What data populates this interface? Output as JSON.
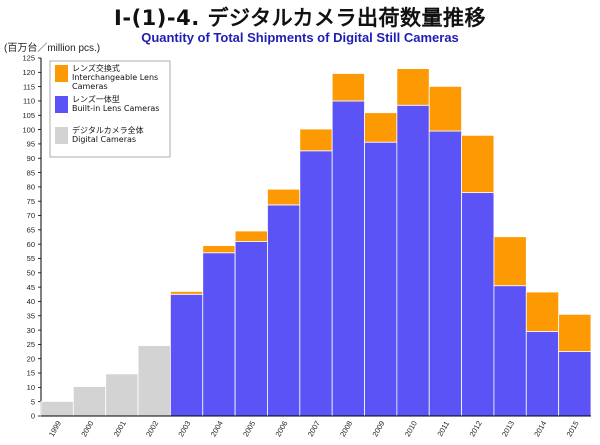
{
  "header": {
    "title": "Ⅰ-(1)-4. デジタルカメラ出荷数量推移",
    "subtitle": "Quantity of Total Shipments of Digital Still Cameras",
    "unit": "(百万台／million pcs.)"
  },
  "chart_data": {
    "type": "bar",
    "stacked": true,
    "title": "Ⅰ-(1)-4. デジタルカメラ出荷数量推移",
    "subtitle": "Quantity of Total Shipments of Digital Still Cameras",
    "ylabel": "(百万台／million pcs.)",
    "ylim": [
      0,
      125
    ],
    "ytick_step": 5,
    "grid": false,
    "legend_position": "top-left",
    "categories": [
      "1999",
      "2000",
      "2001",
      "2002",
      "2003",
      "2004",
      "2005",
      "2006",
      "2007",
      "2008",
      "2009",
      "2010",
      "2011",
      "2012",
      "2013",
      "2014",
      "2015"
    ],
    "series": [
      {
        "name_ja": "デジタルカメラ全体",
        "name_en": "Digital Cameras",
        "color": "#d3d3d3",
        "values": [
          5.1,
          10.3,
          14.7,
          24.6,
          null,
          null,
          null,
          null,
          null,
          null,
          null,
          null,
          null,
          null,
          null,
          null,
          null
        ]
      },
      {
        "name_ja": "レンズ一体型",
        "name_en": "Built-in Lens Cameras",
        "color": "#5b53f5",
        "values": [
          null,
          null,
          null,
          null,
          42.5,
          57.0,
          60.9,
          73.7,
          92.6,
          110.0,
          95.6,
          108.5,
          99.5,
          78.0,
          45.5,
          29.5,
          22.5
        ]
      },
      {
        "name_ja": "レンズ交換式",
        "name_en": "Interchangeable Lens Cameras",
        "color": "#fd9a03",
        "values": [
          null,
          null,
          null,
          null,
          1.0,
          2.5,
          3.7,
          5.5,
          7.6,
          9.6,
          10.3,
          12.8,
          15.6,
          20.0,
          17.1,
          13.8,
          13.0
        ]
      }
    ]
  }
}
